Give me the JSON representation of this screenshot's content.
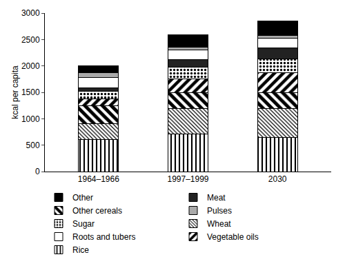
{
  "chart_data": {
    "type": "bar",
    "stacked": true,
    "ylabel": "kcal per capita",
    "categories": [
      "1964–1966",
      "1997–1999",
      "2030"
    ],
    "series": [
      {
        "name": "Rice",
        "color": "#ffffff",
        "values": [
          610,
          710,
          640
        ]
      },
      {
        "name": "Wheat",
        "color": "#ffffff",
        "values": [
          300,
          490,
          550
        ]
      },
      {
        "name": "Other cereals",
        "color": "#ffffff",
        "values": [
          340,
          290,
          300
        ]
      },
      {
        "name": "Vegetable oils",
        "color": "#ffffff",
        "values": [
          130,
          260,
          380
        ]
      },
      {
        "name": "Sugar",
        "color": "#ffffff",
        "values": [
          140,
          220,
          260
        ]
      },
      {
        "name": "Meat",
        "color": "#222222",
        "values": [
          60,
          150,
          210
        ]
      },
      {
        "name": "Roots and tubers",
        "color": "#ffffff",
        "values": [
          200,
          180,
          190
        ]
      },
      {
        "name": "Pulses",
        "color": "#aaaaaa",
        "values": [
          90,
          60,
          50
        ]
      },
      {
        "name": "Other",
        "color": "#000000",
        "values": [
          130,
          230,
          270
        ]
      }
    ],
    "ylim": [
      0,
      3000
    ],
    "yticks": [
      0,
      500,
      1000,
      1500,
      2000,
      2500,
      3000
    ],
    "grid": false,
    "legend": "bottom"
  }
}
